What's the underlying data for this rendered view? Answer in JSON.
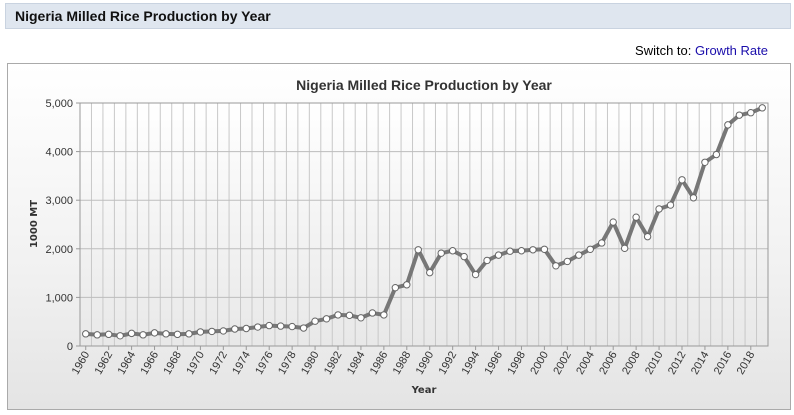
{
  "header": {
    "title": "Nigeria Milled Rice Production by Year"
  },
  "switch": {
    "prefix": "Switch to:",
    "link_label": "Growth Rate"
  },
  "colors": {
    "series": "#777777",
    "title_bar": "#dfe6ef",
    "link": "#1a0dab"
  },
  "chart_data": {
    "type": "line",
    "title": "Nigeria Milled Rice Production by Year",
    "xlabel": "Year",
    "ylabel": "1000 MT",
    "xlim": [
      1960,
      2019
    ],
    "ylim": [
      0,
      5000
    ],
    "yticks": [
      0,
      1000,
      2000,
      3000,
      4000,
      5000
    ],
    "ytick_labels": [
      "0",
      "1,000",
      "2,000",
      "3,000",
      "4,000",
      "5,000"
    ],
    "xticks": [
      1960,
      1962,
      1964,
      1966,
      1968,
      1970,
      1972,
      1974,
      1976,
      1978,
      1980,
      1982,
      1984,
      1986,
      1988,
      1990,
      1992,
      1994,
      1996,
      1998,
      2000,
      2002,
      2004,
      2006,
      2008,
      2010,
      2012,
      2014,
      2016,
      2018
    ],
    "xtick_labels": [
      "1960",
      "1962",
      "1964",
      "1966",
      "1968",
      "1970",
      "1972",
      "1974",
      "1976",
      "1978",
      "1980",
      "1982",
      "1984",
      "1986",
      "1988",
      "1990",
      "1992",
      "1994",
      "1996",
      "1998",
      "2000",
      "2002",
      "2004",
      "2006",
      "2008",
      "2010",
      "2012",
      "2014",
      "2016",
      "2018"
    ],
    "grid": true,
    "x": [
      1960,
      1961,
      1962,
      1963,
      1964,
      1965,
      1966,
      1967,
      1968,
      1969,
      1970,
      1971,
      1972,
      1973,
      1974,
      1975,
      1976,
      1977,
      1978,
      1979,
      1980,
      1981,
      1982,
      1983,
      1984,
      1985,
      1986,
      1987,
      1988,
      1989,
      1990,
      1991,
      1992,
      1993,
      1994,
      1995,
      1996,
      1997,
      1998,
      1999,
      2000,
      2001,
      2002,
      2003,
      2004,
      2005,
      2006,
      2007,
      2008,
      2009,
      2010,
      2011,
      2012,
      2013,
      2014,
      2015,
      2016,
      2017,
      2018,
      2019
    ],
    "series": [
      {
        "values": [
          250,
          230,
          240,
          210,
          260,
          230,
          270,
          250,
          240,
          250,
          290,
          300,
          310,
          350,
          360,
          390,
          420,
          410,
          400,
          370,
          510,
          560,
          640,
          630,
          580,
          680,
          640,
          1200,
          1260,
          1980,
          1510,
          1910,
          1960,
          1840,
          1470,
          1760,
          1870,
          1950,
          1960,
          1980,
          1990,
          1650,
          1740,
          1870,
          1990,
          2120,
          2550,
          2010,
          2650,
          2250,
          2820,
          2900,
          3420,
          3050,
          3780,
          3940,
          4550,
          4750,
          4800,
          4900
        ]
      }
    ]
  }
}
